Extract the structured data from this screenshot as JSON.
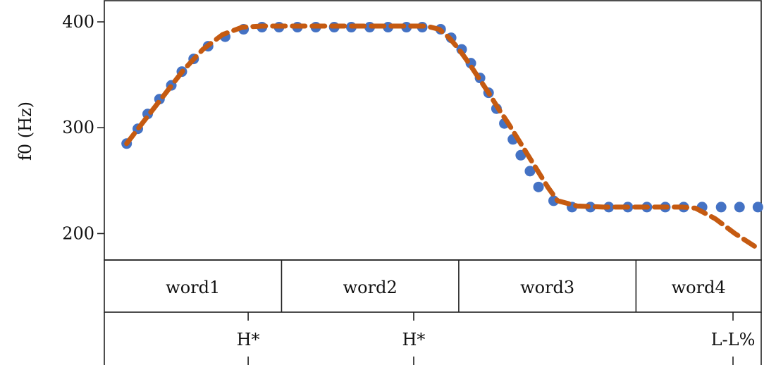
{
  "chart_data": {
    "type": "line",
    "title": "",
    "xlabel": "",
    "ylabel": "f0 (Hz)",
    "ylim": [
      175,
      420
    ],
    "yticks": [
      200,
      300,
      400
    ],
    "xlim": [
      0,
      1
    ],
    "series": [
      {
        "name": "",
        "style": "dots",
        "color": "#4472c4",
        "x": [
          0.034,
          0.051,
          0.066,
          0.084,
          0.102,
          0.118,
          0.136,
          0.158,
          0.184,
          0.212,
          0.24,
          0.266,
          0.294,
          0.322,
          0.35,
          0.376,
          0.404,
          0.432,
          0.46,
          0.484,
          0.512,
          0.528,
          0.544,
          0.558,
          0.572,
          0.585,
          0.597,
          0.609,
          0.622,
          0.634,
          0.648,
          0.661,
          0.684,
          0.712,
          0.74,
          0.768,
          0.797,
          0.826,
          0.854,
          0.882,
          0.91,
          0.939,
          0.967,
          0.995
        ],
        "y": [
          285,
          299,
          313,
          327,
          340,
          353,
          365,
          377,
          386,
          393,
          395,
          395,
          395,
          395,
          395,
          395,
          395,
          395,
          395,
          395,
          393,
          385,
          374,
          361,
          347,
          333,
          318,
          304,
          289,
          274,
          259,
          244,
          231,
          225,
          225,
          225,
          225,
          225,
          225,
          225,
          225,
          225,
          225,
          225
        ]
      },
      {
        "name": "",
        "style": "dashed",
        "color": "#c55a11",
        "x": [
          0.034,
          0.06,
          0.09,
          0.12,
          0.15,
          0.18,
          0.21,
          0.24,
          0.27,
          0.3,
          0.35,
          0.4,
          0.45,
          0.49,
          0.51,
          0.525,
          0.54,
          0.555,
          0.57,
          0.585,
          0.6,
          0.615,
          0.63,
          0.645,
          0.66,
          0.675,
          0.69,
          0.72,
          0.76,
          0.8,
          0.84,
          0.88,
          0.9,
          0.93,
          0.96,
          0.995
        ],
        "y": [
          285,
          306,
          330,
          354,
          374,
          388,
          395,
          396,
          396,
          396,
          396,
          396,
          396,
          396,
          393,
          385,
          374,
          361,
          347,
          333,
          318,
          304,
          289,
          274,
          259,
          244,
          231,
          226,
          225,
          225,
          225,
          225,
          224,
          214,
          200,
          186
        ]
      }
    ]
  },
  "tiers": {
    "words": [
      {
        "label": "word1",
        "start": 0.0,
        "end": 0.2698
      },
      {
        "label": "word2",
        "start": 0.2698,
        "end": 0.5396
      },
      {
        "label": "word3",
        "start": 0.5396,
        "end": 0.8094
      },
      {
        "label": "word4",
        "start": 0.8094,
        "end": 1.0
      }
    ],
    "tones": [
      {
        "label": "H*",
        "pos": 0.219
      },
      {
        "label": "H*",
        "pos": 0.471
      },
      {
        "label": "L-L%",
        "pos": 1.0
      }
    ]
  }
}
